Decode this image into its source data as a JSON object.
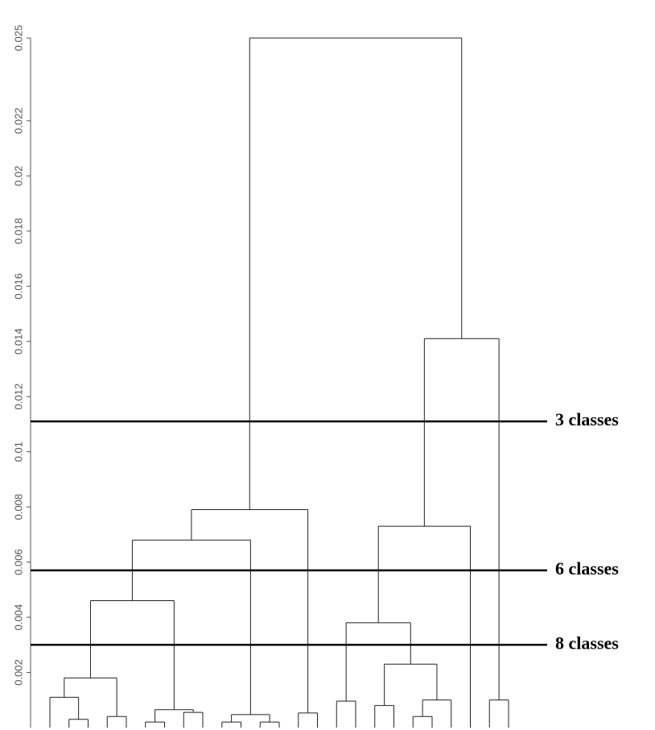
{
  "chart_data": {
    "type": "dendrogram",
    "ylim": [
      0,
      0.0255
    ],
    "yticks": [
      0.002,
      0.004,
      0.006,
      0.008,
      0.01,
      0.012,
      0.014,
      0.016,
      0.018,
      0.02,
      0.022,
      0.025
    ],
    "merges": [
      {
        "children": [
          1,
          2
        ],
        "height": 0.0003
      },
      {
        "children": [
          0,
          25
        ],
        "height": 0.0011
      },
      {
        "children": [
          3,
          4
        ],
        "height": 0.0004
      },
      {
        "children": [
          26,
          27
        ],
        "height": 0.0018
      },
      {
        "children": [
          5,
          6
        ],
        "height": 0.0002
      },
      {
        "children": [
          7,
          8
        ],
        "height": 0.00055
      },
      {
        "children": [
          29,
          30
        ],
        "height": 0.00065
      },
      {
        "children": [
          28,
          31
        ],
        "height": 0.0046
      },
      {
        "children": [
          9,
          10
        ],
        "height": 0.0002
      },
      {
        "children": [
          11,
          12
        ],
        "height": 0.0002
      },
      {
        "children": [
          33,
          34
        ],
        "height": 0.00047
      },
      {
        "children": [
          32,
          35
        ],
        "height": 0.0068
      },
      {
        "children": [
          13,
          14
        ],
        "height": 0.00053
      },
      {
        "children": [
          36,
          37
        ],
        "height": 0.0079
      },
      {
        "children": [
          15,
          16
        ],
        "height": 0.00096
      },
      {
        "children": [
          17,
          18
        ],
        "height": 0.0008
      },
      {
        "children": [
          19,
          20
        ],
        "height": 0.0004
      },
      {
        "children": [
          41,
          21
        ],
        "height": 0.001
      },
      {
        "children": [
          40,
          42
        ],
        "height": 0.0023
      },
      {
        "children": [
          39,
          43
        ],
        "height": 0.0038
      },
      {
        "children": [
          44,
          22
        ],
        "height": 0.0073
      },
      {
        "children": [
          23,
          24
        ],
        "height": 0.001
      },
      {
        "children": [
          45,
          46
        ],
        "height": 0.0141
      },
      {
        "children": [
          38,
          47
        ],
        "height": 0.025
      }
    ],
    "cuts": [
      {
        "label": "3 classes",
        "value": 0.0111
      },
      {
        "label": "6 classes",
        "value": 0.0057
      },
      {
        "label": "8 classes",
        "value": 0.003
      }
    ]
  }
}
